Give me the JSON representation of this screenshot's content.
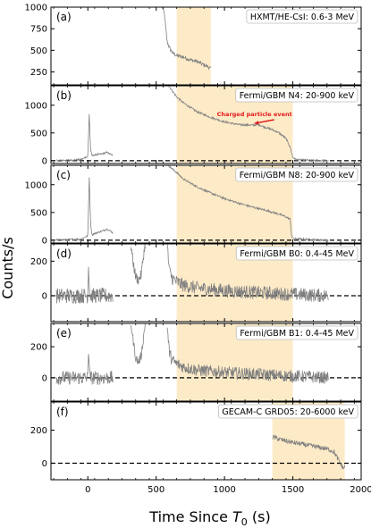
{
  "chart_data": {
    "type": "line",
    "xlabel": "Time Since T0 (s)",
    "xlabel_parts": {
      "main": "Time Since ",
      "base": "T",
      "sub": "0",
      "unit": " (s)"
    },
    "ylabel": "Counts/s",
    "xlim": [
      -270,
      2000
    ],
    "xticks": [
      0,
      500,
      1000,
      1500,
      2000
    ],
    "line_color": "#808080",
    "shade_color": "#fdebc8",
    "zero_line": "dashed",
    "annotation": {
      "text": "Charged particle event",
      "color": "#e31a1c",
      "panel": 1,
      "arrow_to": {
        "x": 1200,
        "y": 640
      }
    },
    "panels": [
      {
        "tag": "(a)",
        "label": "HXMT/HE-CsI: 0.6-3 MeV",
        "ylim": [
          100,
          1000
        ],
        "yticks": [
          250,
          500,
          750,
          1000
        ],
        "shade": [
          650,
          900
        ],
        "zero_line": false,
        "segments": [
          {
            "x": [
              545,
              560,
              570,
              580,
              600,
              620,
              650,
              700,
              750,
              800,
              850,
              880,
              900
            ],
            "y": [
              1000,
              920,
              760,
              600,
              520,
              470,
              440,
              420,
              390,
              370,
              330,
              310,
              290
            ],
            "noise": 22
          }
        ]
      },
      {
        "tag": "(b)",
        "label": "Fermi/GBM N4: 20-900 keV",
        "ylim": [
          -50,
          1350
        ],
        "yticks": [
          0,
          500,
          1000
        ],
        "shade": [
          650,
          1500
        ],
        "zero_line": true,
        "segments": [
          {
            "x": [
              -230,
              -150,
              -50,
              0,
              10,
              20,
              30,
              60,
              100,
              140,
              170,
              182
            ],
            "y": [
              5,
              10,
              20,
              80,
              850,
              200,
              90,
              110,
              120,
              150,
              110,
              100
            ],
            "noise": 15
          },
          {
            "x": [
              183,
              190
            ],
            "y": [
              1350,
              1350
            ],
            "noise": 0
          },
          {
            "x": [
              590,
              600,
              620,
              650,
              700,
              800,
              900,
              1000,
              1100,
              1200,
              1250,
              1300,
              1350,
              1400,
              1450,
              1480,
              1500,
              1520,
              1550,
              1600,
              1650,
              1700,
              1760
            ],
            "y": [
              1350,
              1320,
              1250,
              1150,
              1040,
              880,
              780,
              700,
              650,
              640,
              650,
              600,
              560,
              500,
              400,
              250,
              60,
              25,
              15,
              10,
              5,
              5,
              0
            ],
            "noise": 18
          }
        ]
      },
      {
        "tag": "(c)",
        "label": "Fermi/GBM N8: 20-900 keV",
        "ylim": [
          -50,
          1350
        ],
        "yticks": [
          0,
          500,
          1000
        ],
        "shade": [
          650,
          1500
        ],
        "zero_line": true,
        "segments": [
          {
            "x": [
              -230,
              -150,
              -50,
              0,
              10,
              20,
              30,
              60,
              100,
              140,
              170,
              182
            ],
            "y": [
              5,
              10,
              20,
              80,
              1150,
              300,
              100,
              130,
              160,
              200,
              160,
              130
            ],
            "noise": 15
          },
          {
            "x": [
              183,
              190
            ],
            "y": [
              1350,
              1350
            ],
            "noise": 0
          },
          {
            "x": [
              590,
              600,
              650,
              700,
              800,
              900,
              1000,
              1100,
              1200,
              1300,
              1400,
              1450,
              1480,
              1490,
              1500,
              1600,
              1700,
              1760
            ],
            "y": [
              1350,
              1320,
              1220,
              1100,
              960,
              850,
              750,
              670,
              600,
              540,
              470,
              420,
              380,
              100,
              30,
              15,
              5,
              0
            ],
            "noise": 18
          }
        ]
      },
      {
        "tag": "(d)",
        "label": "Fermi/GBM B0: 0.4-45 MeV",
        "ylim": [
          -150,
          300
        ],
        "yticks": [
          0,
          200
        ],
        "shade": [
          650,
          1500
        ],
        "zero_line": true,
        "segments": [
          {
            "x": [
              -230,
              -100,
              0,
              5,
              15,
              30,
              100,
              170,
              183
            ],
            "y": [
              0,
              0,
              0,
              190,
              0,
              0,
              0,
              0,
              0
            ],
            "noise": 45
          },
          {
            "x": [
              185,
              195
            ],
            "y": [
              300,
              300
            ],
            "noise": 0
          },
          {
            "x": [
              315,
              330,
              350,
              370,
              390,
              410,
              420
            ],
            "y": [
              300,
              200,
              110,
              90,
              120,
              250,
              300
            ],
            "noise": 30
          },
          {
            "x": [
              580,
              590,
              600,
              620,
              650,
              700,
              800,
              1000,
              1200,
              1400,
              1600,
              1760
            ],
            "y": [
              300,
              200,
              130,
              100,
              80,
              60,
              45,
              30,
              20,
              12,
              5,
              0
            ],
            "noise": 40
          }
        ]
      },
      {
        "tag": "(e)",
        "label": "Fermi/GBM B1: 0.4-45 MeV",
        "ylim": [
          -150,
          350
        ],
        "yticks": [
          0,
          200
        ],
        "shade": [
          650,
          1500
        ],
        "zero_line": true,
        "segments": [
          {
            "x": [
              -230,
              -100,
              0,
              5,
              15,
              30,
              100,
              170,
              183
            ],
            "y": [
              0,
              0,
              0,
              200,
              0,
              0,
              0,
              0,
              0
            ],
            "noise": 45
          },
          {
            "x": [
              185,
              195
            ],
            "y": [
              350,
              350
            ],
            "noise": 0
          },
          {
            "x": [
              315,
              330,
              350,
              370,
              390,
              410,
              420
            ],
            "y": [
              350,
              250,
              130,
              100,
              140,
              280,
              350
            ],
            "noise": 30
          },
          {
            "x": [
              580,
              590,
              600,
              620,
              650,
              700,
              800,
              1000,
              1200,
              1400,
              1600,
              1760
            ],
            "y": [
              350,
              220,
              150,
              110,
              90,
              70,
              50,
              35,
              25,
              15,
              8,
              0
            ],
            "noise": 40
          }
        ]
      },
      {
        "tag": "(f)",
        "label": "GECAM-C GRD05: 20-6000 keV",
        "ylim": [
          -100,
          370
        ],
        "yticks": [
          0,
          200
        ],
        "shade": [
          1350,
          1880
        ],
        "zero_line": true,
        "segments": [
          {
            "x": [
              1350,
              1400,
              1500,
              1600,
              1700,
              1760,
              1800,
              1820,
              1840,
              1860,
              1870,
              1880
            ],
            "y": [
              160,
              145,
              125,
              110,
              95,
              85,
              70,
              40,
              10,
              -20,
              -30,
              -20
            ],
            "noise": 15
          }
        ]
      }
    ]
  }
}
